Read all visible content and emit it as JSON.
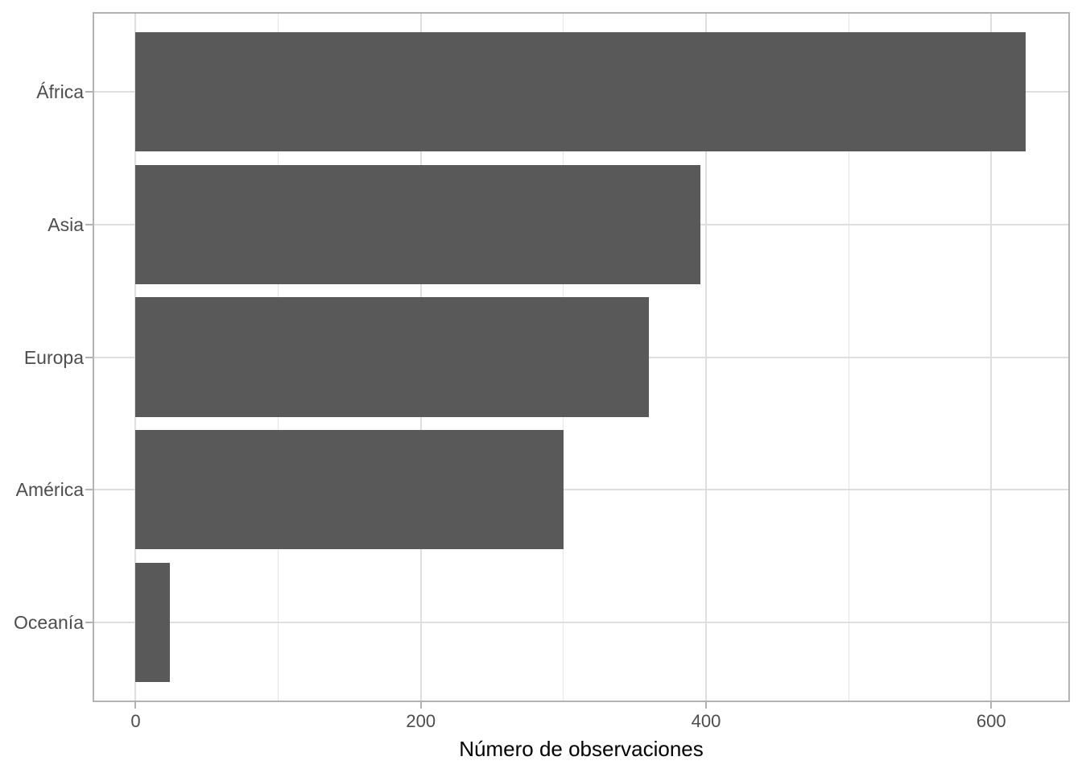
{
  "chart_data": {
    "type": "bar",
    "orientation": "horizontal",
    "title": "",
    "xlabel": "Número de observaciones",
    "ylabel": "",
    "categories": [
      "África",
      "Asia",
      "Europa",
      "América",
      "Oceanía"
    ],
    "values": [
      624,
      396,
      360,
      300,
      24
    ],
    "xlim": [
      -30.2,
      655.2
    ],
    "x_ticks_major": [
      0,
      200,
      400,
      600
    ],
    "x_ticks_minor": [
      100,
      300,
      500
    ],
    "x_tick_labels": [
      "0",
      "200",
      "400",
      "600"
    ],
    "bar_rel_height": 0.9,
    "category_expand": 0.6,
    "grid": "vertical major+minor, horizontal major at category centers",
    "legend": "none"
  },
  "style": {
    "bar_fill": "#595959",
    "grid_major_color": "#dedede",
    "grid_minor_color": "#e4e4e4",
    "panel_border_color": "#b3b3b3",
    "tick_color": "#b3b3b3",
    "axis_text_color": "#4d4d4d",
    "axis_title_color": "#000000",
    "background": "#ffffff"
  }
}
